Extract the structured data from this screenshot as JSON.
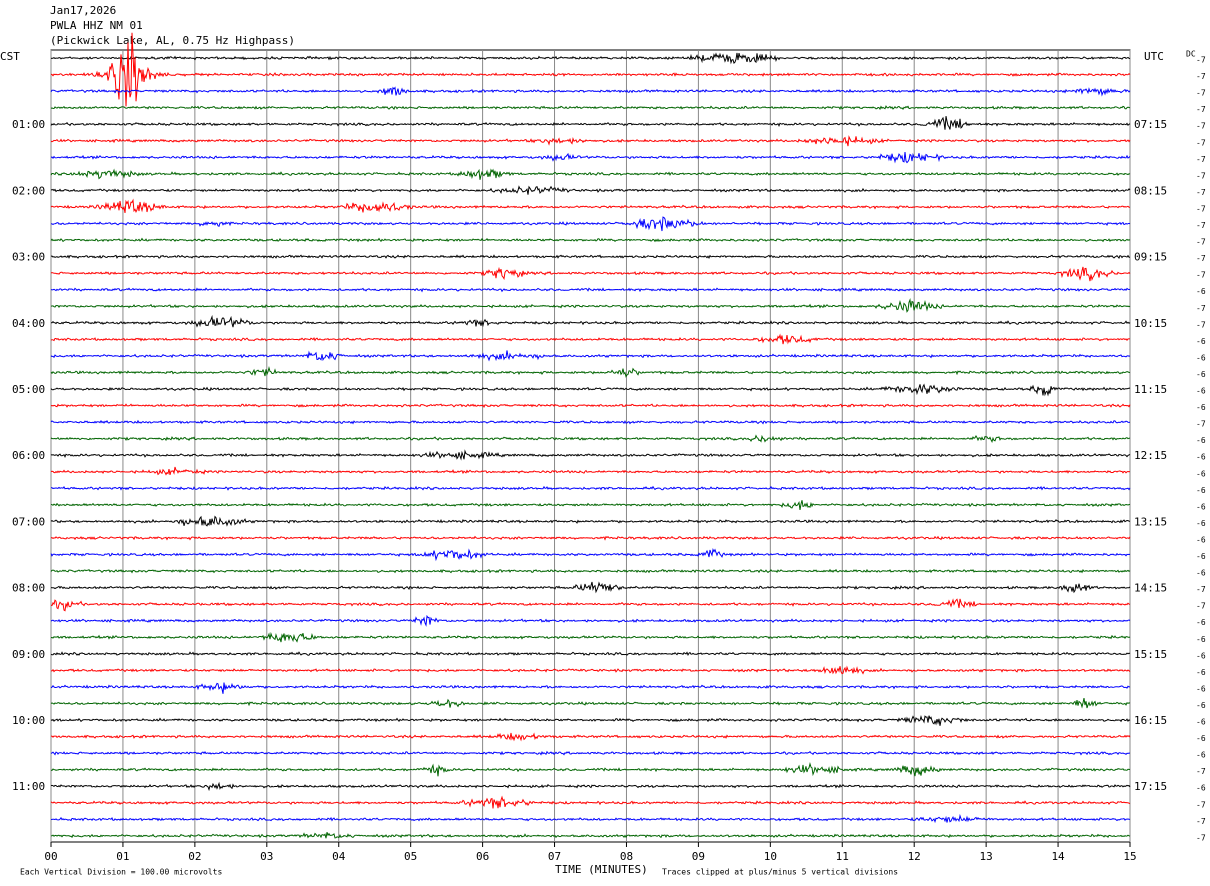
{
  "header": {
    "date": "Jan17,2026",
    "station": "PWLA HHZ NM 01",
    "location": "(Pickwick Lake, AL, 0.75 Hz Highpass)"
  },
  "left_axis": {
    "title": "CST",
    "labels": [
      "01:00",
      "02:00",
      "03:00",
      "04:00",
      "05:00",
      "06:00",
      "07:00",
      "08:00",
      "09:00",
      "10:00",
      "11:00"
    ]
  },
  "right_axis": {
    "title": "UTC",
    "labels": [
      "07:15",
      "08:15",
      "09:15",
      "10:15",
      "11:15",
      "12:15",
      "13:15",
      "14:15",
      "15:15",
      "16:15",
      "17:15"
    ]
  },
  "dc": {
    "title": "DC",
    "values": [
      -7,
      -7,
      -7,
      -7,
      -7,
      -7,
      -7,
      -7,
      -7,
      -7,
      -7,
      -7,
      -7,
      -7,
      -6,
      -7,
      -7,
      -6,
      -6,
      -6,
      -6,
      -6,
      -7,
      -6,
      -6,
      -6,
      -6,
      -6,
      -6,
      -6,
      -6,
      -6,
      -7,
      -7,
      -6,
      -6,
      -6,
      -6,
      -6,
      -6,
      -6,
      -6,
      -6,
      -7,
      -6,
      -7,
      -7,
      -7
    ]
  },
  "x_axis": {
    "title": "TIME (MINUTES)",
    "ticks": [
      "00",
      "01",
      "02",
      "03",
      "04",
      "05",
      "06",
      "07",
      "08",
      "09",
      "10",
      "11",
      "12",
      "13",
      "14",
      "15"
    ]
  },
  "footer": {
    "scale": "Each Vertical Division =  100.00 microvolts",
    "clip": "Traces clipped at plus/minus 5 vertical divisions"
  },
  "trace_colors": [
    "#000000",
    "#ff0000",
    "#0000ff",
    "#006400"
  ]
}
